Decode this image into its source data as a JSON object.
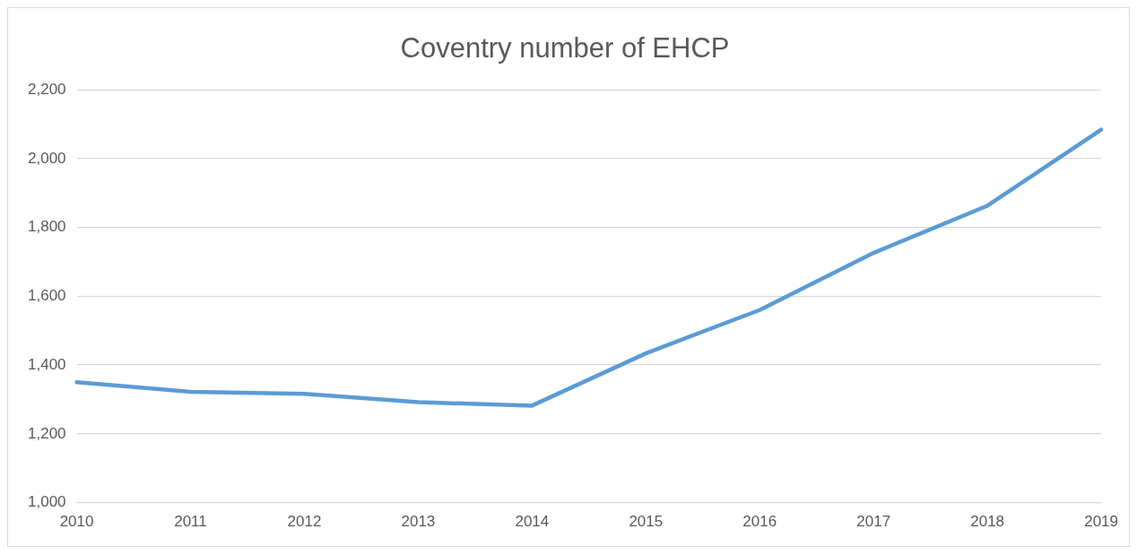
{
  "chart_data": {
    "type": "line",
    "title": "Coventry number of EHCP",
    "categories": [
      "2010",
      "2011",
      "2012",
      "2013",
      "2014",
      "2015",
      "2016",
      "2017",
      "2018",
      "2019"
    ],
    "series": [
      {
        "color": "#5b9bd5",
        "values": [
          1350,
          1322,
          1316,
          1292,
          1282,
          1434,
          1560,
          1726,
          1863,
          2084
        ]
      }
    ],
    "ylim": [
      1000,
      2200
    ],
    "yticks": [
      {
        "value": 1000,
        "label": "1,000"
      },
      {
        "value": 1200,
        "label": "1,200"
      },
      {
        "value": 1400,
        "label": "1,400"
      },
      {
        "value": 1600,
        "label": "1,600"
      },
      {
        "value": 1800,
        "label": "1,800"
      },
      {
        "value": 2000,
        "label": "2,000"
      },
      {
        "value": 2200,
        "label": "2,200"
      }
    ],
    "grid": "y",
    "legend": false
  }
}
